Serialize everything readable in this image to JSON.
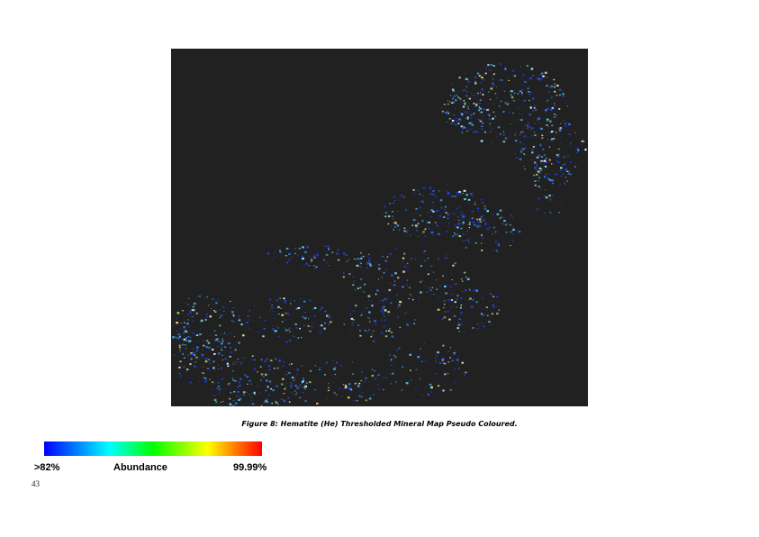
{
  "figure": {
    "caption": "Figure 8: Hematite (He) Thresholded Mineral Map Pseudo Coloured."
  },
  "colorbar": {
    "min_label": ">82%",
    "title": "Abundance",
    "max_label": "99.99%",
    "colors": [
      "#0000ff",
      "#00ffff",
      "#00ff00",
      "#ffff00",
      "#ff0000"
    ]
  },
  "page": {
    "number": "43"
  },
  "colors": {
    "map_background": "#212121",
    "page_background": "#ffffff"
  }
}
